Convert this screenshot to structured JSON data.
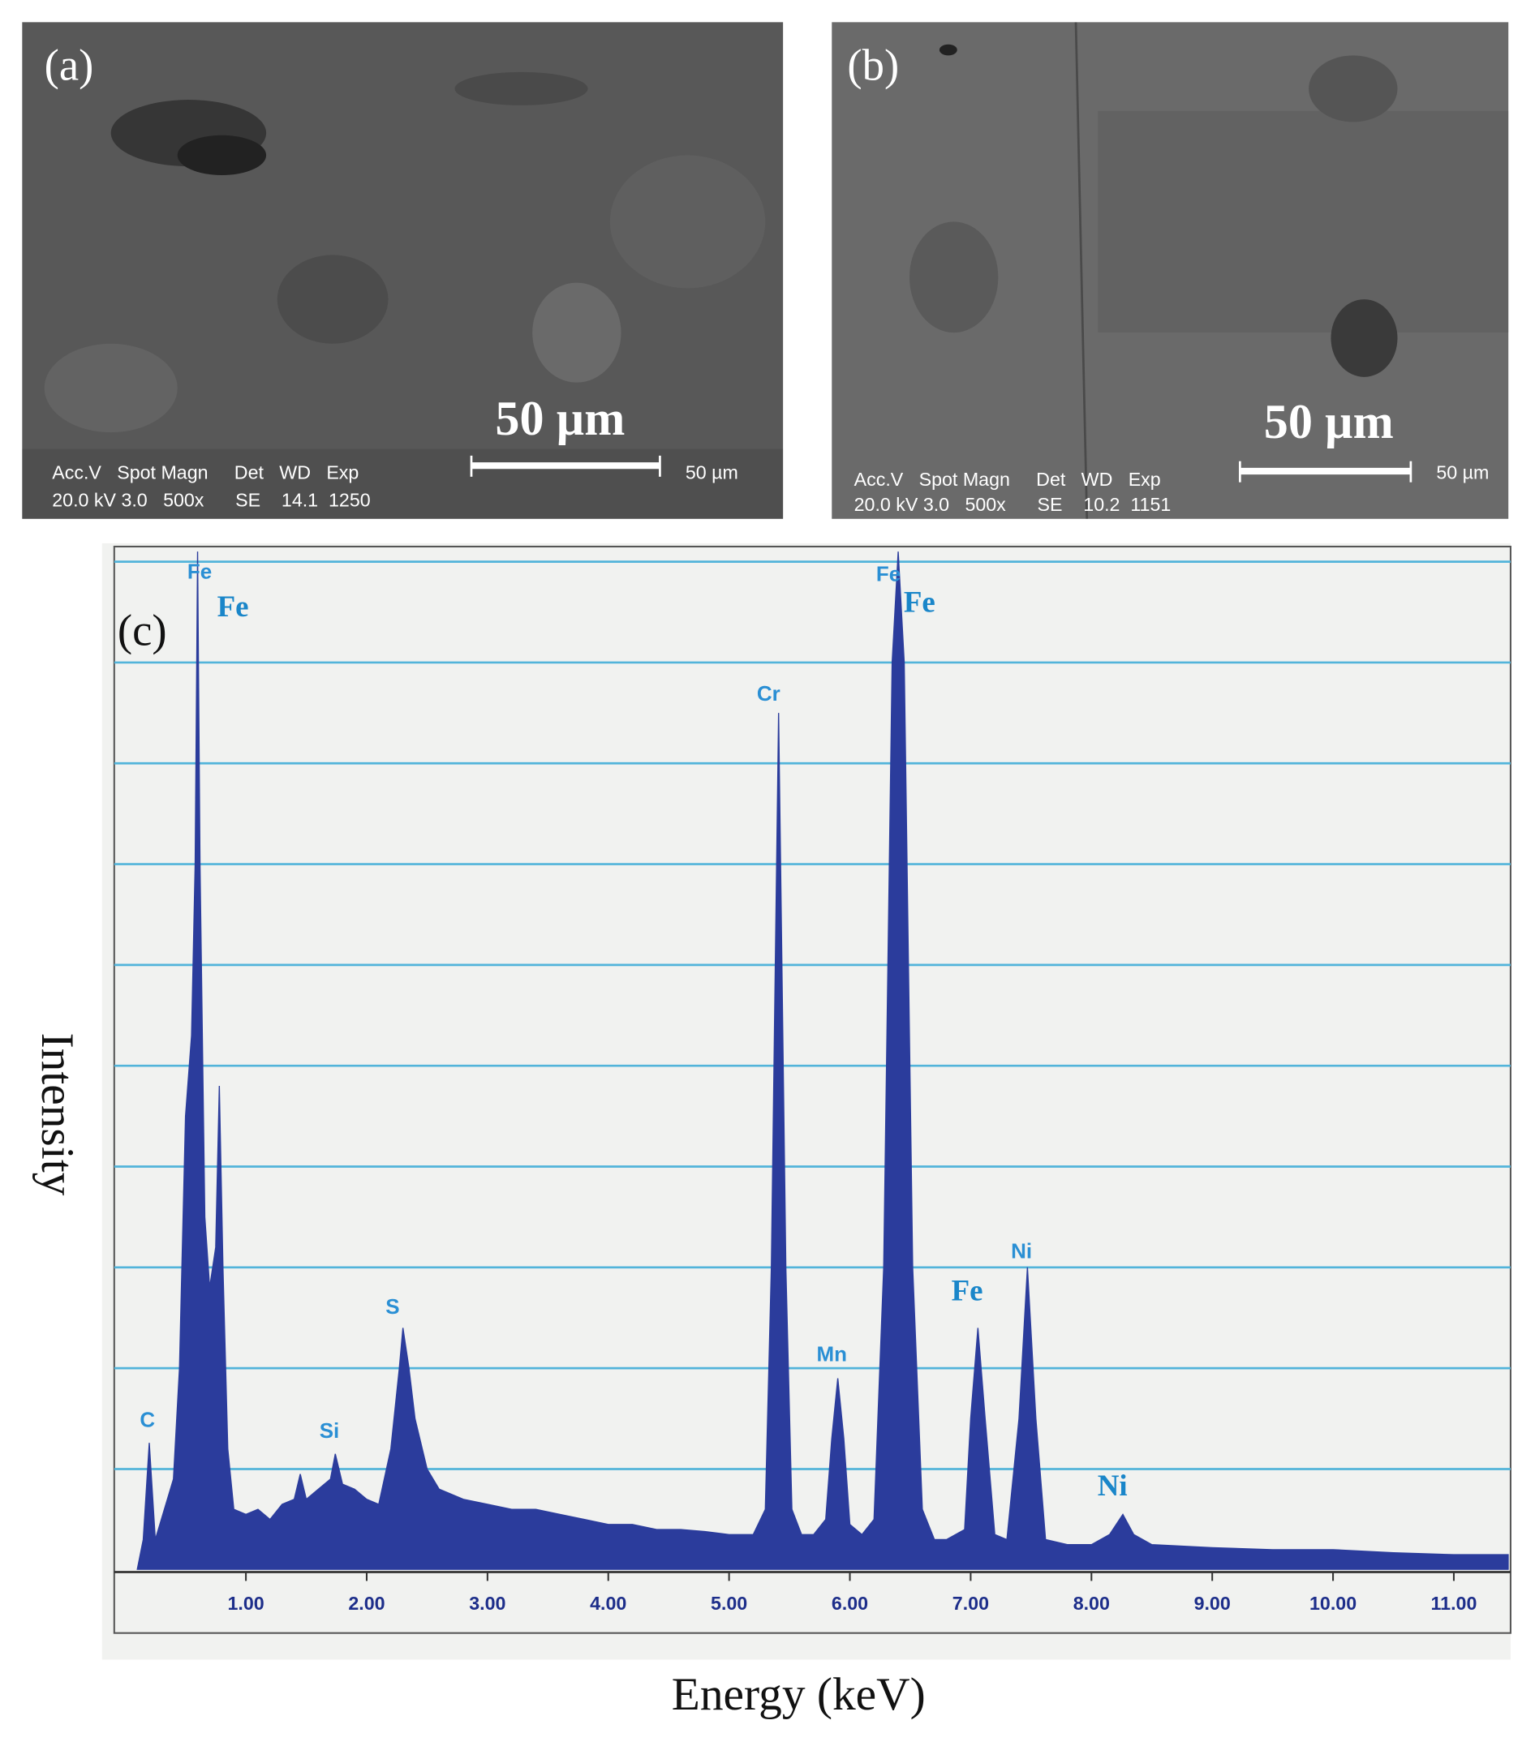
{
  "panels": [
    {
      "label": "(a)",
      "scale_label": "50 µm",
      "info_header": "Acc.V   Spot Magn     Det   WD   Exp",
      "info_values": "20.0 kV 3.0   500x      SE    14.1  1250",
      "bar_label": "50 µm"
    },
    {
      "label": "(b)",
      "scale_label": "50 µm",
      "info_header": "Acc.V   Spot Magn     Det   WD   Exp",
      "info_values": "20.0 kV 3.0   500x      SE    10.2  1151",
      "bar_label": "50 µm"
    }
  ],
  "chart_data": {
    "type": "area",
    "label": "(c)",
    "x_label": "Energy (keV)",
    "y_label": "Intensity",
    "x": [
      0.1,
      0.15,
      0.2,
      0.25,
      0.3,
      0.4,
      0.45,
      0.5,
      0.55,
      0.58,
      0.6,
      0.62,
      0.66,
      0.7,
      0.75,
      0.78,
      0.81,
      0.85,
      0.9,
      1.0,
      1.1,
      1.2,
      1.3,
      1.4,
      1.45,
      1.5,
      1.6,
      1.7,
      1.74,
      1.8,
      1.9,
      2.0,
      2.1,
      2.2,
      2.27,
      2.3,
      2.35,
      2.4,
      2.5,
      2.6,
      2.8,
      3.0,
      3.2,
      3.4,
      3.6,
      3.8,
      4.0,
      4.2,
      4.4,
      4.6,
      4.8,
      5.0,
      5.2,
      5.3,
      5.35,
      5.41,
      5.47,
      5.52,
      5.6,
      5.7,
      5.8,
      5.85,
      5.9,
      5.95,
      6.0,
      6.1,
      6.2,
      6.28,
      6.35,
      6.4,
      6.45,
      6.52,
      6.6,
      6.7,
      6.8,
      6.95,
      7.0,
      7.06,
      7.12,
      7.2,
      7.3,
      7.4,
      7.47,
      7.54,
      7.62,
      7.8,
      8.0,
      8.15,
      8.26,
      8.35,
      8.5,
      9.0,
      9.5,
      10.0,
      10.5,
      11.0,
      11.45
    ],
    "values": [
      0,
      0.3,
      1.26,
      0.3,
      0.5,
      0.9,
      2.0,
      4.5,
      5.3,
      7.0,
      10.1,
      7.0,
      3.5,
      2.8,
      3.2,
      4.8,
      3.0,
      1.2,
      0.6,
      0.55,
      0.6,
      0.5,
      0.65,
      0.7,
      0.95,
      0.7,
      0.8,
      0.9,
      1.15,
      0.85,
      0.8,
      0.7,
      0.65,
      1.2,
      2.0,
      2.4,
      2.0,
      1.5,
      1.0,
      0.8,
      0.7,
      0.65,
      0.6,
      0.6,
      0.55,
      0.5,
      0.45,
      0.45,
      0.4,
      0.4,
      0.38,
      0.35,
      0.35,
      0.6,
      3.0,
      8.5,
      3.0,
      0.6,
      0.35,
      0.35,
      0.5,
      1.3,
      1.9,
      1.3,
      0.45,
      0.35,
      0.5,
      3.0,
      9.0,
      10.1,
      9.0,
      3.0,
      0.6,
      0.3,
      0.3,
      0.4,
      1.5,
      2.4,
      1.5,
      0.35,
      0.3,
      1.5,
      3.0,
      1.5,
      0.3,
      0.25,
      0.25,
      0.35,
      0.55,
      0.35,
      0.25,
      0.22,
      0.2,
      0.2,
      0.17,
      0.15,
      0.15
    ],
    "color": "#2b3c9c",
    "xlim": [
      -0.09,
      11.47
    ],
    "ylim": [
      0,
      10.15
    ],
    "xticks": [
      {
        "value": 1,
        "label": "1.00"
      },
      {
        "value": 2,
        "label": "2.00"
      },
      {
        "value": 3,
        "label": "3.00"
      },
      {
        "value": 4,
        "label": "4.00"
      },
      {
        "value": 5,
        "label": "5.00"
      },
      {
        "value": 6,
        "label": "6.00"
      },
      {
        "value": 7,
        "label": "7.00"
      },
      {
        "value": 8,
        "label": "8.00"
      },
      {
        "value": 9,
        "label": "9.00"
      },
      {
        "value": 10,
        "label": "10.00"
      },
      {
        "value": 11,
        "label": "11.00"
      }
    ],
    "ygrid": [
      1,
      2,
      3,
      4,
      5,
      6,
      7,
      8,
      9,
      10
    ],
    "grid_color": "#52b4da",
    "annotations": [
      "Fe",
      "Fe",
      "C",
      "Si",
      "S",
      "Cr",
      "Mn",
      "Fe",
      "Fe",
      "Fe",
      "Ni",
      "Ni"
    ]
  }
}
